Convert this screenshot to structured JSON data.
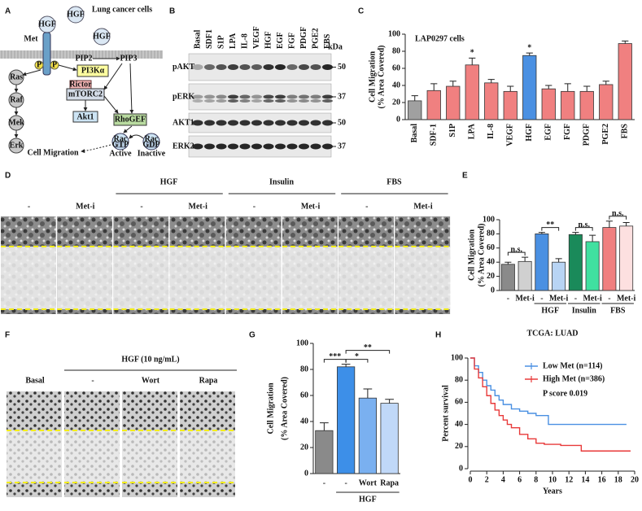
{
  "panel_a": {
    "letter": "A",
    "title": "Lung cancer cells",
    "ligands": [
      "HGF",
      "HGF",
      "HGF"
    ],
    "receptor": "Met",
    "phospho": [
      "P",
      "P"
    ],
    "lipids": [
      "PIP2",
      "PIP3"
    ],
    "pi3k": "PI3Kα",
    "mapk": [
      "Ras",
      "Raf",
      "Mek",
      "Erk"
    ],
    "mtorc2": [
      "Rictor",
      "mTORC2"
    ],
    "akt": "Akt1",
    "rhogef": "RhoGEF",
    "rac": [
      {
        "label": "Rac",
        "state": "GTP",
        "status": "Active"
      },
      {
        "label": "Rac",
        "state": "GDP",
        "status": "Inactive"
      }
    ],
    "outcome": "Cell Migration"
  },
  "panel_b": {
    "letter": "B",
    "lanes": [
      "Basal",
      "SDF1",
      "S1P",
      "LPA",
      "IL-8",
      "VEGF",
      "HGF",
      "EGF",
      "FGF",
      "PDGF",
      "PGE2",
      "FBS"
    ],
    "unit": "kDa",
    "rows": [
      {
        "label": "pAKT",
        "marker": "50"
      },
      {
        "label": "pERK",
        "marker": "37"
      },
      {
        "label": "AKT1",
        "marker": "50"
      },
      {
        "label": "ERK2",
        "marker": "37"
      }
    ]
  },
  "panel_d": {
    "letter": "D",
    "lanes": [
      "-",
      "Met-i",
      "-",
      "Met-i",
      "-",
      "Met-i",
      "-",
      "Met-i"
    ],
    "groups": [
      {
        "label": "HGF",
        "lanes": [
          2,
          3
        ]
      },
      {
        "label": "Insulin",
        "lanes": [
          4,
          5
        ]
      },
      {
        "label": "FBS",
        "lanes": [
          6,
          7
        ]
      }
    ]
  },
  "panel_f": {
    "letter": "F",
    "lanes": [
      "Basal",
      "-",
      "Wort",
      "Rapa"
    ],
    "groups": [
      {
        "label": "HGF (10 ng/mL)",
        "lanes": [
          1,
          2,
          3
        ]
      }
    ]
  },
  "chart_data": [
    {
      "type": "bar",
      "panel": "C",
      "title": "LAP0297 cells",
      "ylabel": [
        "Cell Migration",
        "(% Area Covered)"
      ],
      "categories": [
        "Basal",
        "SDF-1",
        "S1P",
        "LPA",
        "IL-8",
        "VEGF",
        "HGF",
        "EGF",
        "FGF",
        "PDGF",
        "PGE2",
        "FBS"
      ],
      "values": [
        22,
        34,
        39,
        64,
        43,
        33,
        75,
        36,
        33,
        33,
        41,
        89
      ],
      "errors": [
        6,
        8,
        6,
        8,
        4,
        6,
        3,
        4,
        9,
        6,
        4,
        3
      ],
      "colors": [
        "#a0a0a0",
        "#f08080",
        "#f08080",
        "#f08080",
        "#f08080",
        "#f08080",
        "#4a90e2",
        "#f08080",
        "#f08080",
        "#f08080",
        "#f08080",
        "#f08080"
      ],
      "ylim": [
        0,
        100
      ],
      "yticks": [
        0,
        20,
        40,
        60,
        80,
        100
      ],
      "annotations": [
        {
          "text": "*",
          "bar": 3
        },
        {
          "text": "*",
          "bar": 6
        }
      ]
    },
    {
      "type": "bar",
      "panel": "E",
      "ylabel": [
        "Cell Migration",
        "(% Area Covered)"
      ],
      "categories": [
        "-",
        "Met-i",
        "-",
        "Met-i",
        "-",
        "Met-i",
        "-",
        "Met-i"
      ],
      "values": [
        37,
        41,
        80,
        40,
        79,
        69,
        89,
        91
      ],
      "errors": [
        3,
        6,
        2,
        5,
        3,
        9,
        9,
        5
      ],
      "colors": [
        "#8a8a8a",
        "#d0d0d0",
        "#4a90e2",
        "#b8d4f4",
        "#1a8a5a",
        "#40e0a0",
        "#f08080",
        "#fde0e0"
      ],
      "ylim": [
        0,
        100
      ],
      "yticks": [
        0,
        20,
        40,
        60,
        80,
        100
      ],
      "brackets": [
        {
          "text": "n.s.",
          "between": [
            0,
            1
          ]
        },
        {
          "text": "**",
          "between": [
            2,
            3
          ]
        },
        {
          "text": "n.s.",
          "between": [
            4,
            5
          ]
        },
        {
          "text": "n.s.",
          "between": [
            6,
            7
          ]
        }
      ],
      "groups": [
        {
          "label": "HGF",
          "members": [
            2,
            3
          ]
        },
        {
          "label": "Insulin",
          "members": [
            4,
            5
          ]
        },
        {
          "label": "FBS",
          "members": [
            6,
            7
          ]
        }
      ]
    },
    {
      "type": "bar",
      "panel": "G",
      "ylabel": [
        "Cell Migration",
        "(% Area Covered)"
      ],
      "categories": [
        "-",
        "-",
        "Wort",
        "Rapa"
      ],
      "values": [
        33,
        82,
        58,
        54
      ],
      "errors": [
        6,
        2,
        7,
        3
      ],
      "colors": [
        "#8a8a8a",
        "#3d8fe8",
        "#7ab0f0",
        "#c0d8f8"
      ],
      "ylim": [
        0,
        100
      ],
      "yticks": [
        0,
        20,
        40,
        60,
        80,
        100
      ],
      "brackets": [
        {
          "text": "***",
          "between": [
            0,
            1
          ]
        },
        {
          "text": "*",
          "between": [
            1,
            2
          ]
        },
        {
          "text": "**",
          "between": [
            1,
            3
          ]
        }
      ],
      "groups": [
        {
          "label": "HGF",
          "members": [
            1,
            2,
            3
          ]
        }
      ]
    },
    {
      "type": "line",
      "panel": "H",
      "title": "TCGA: LUAD",
      "xlabel": "Years",
      "ylabel": "Percent survival",
      "xlim": [
        0,
        20
      ],
      "ylim": [
        0,
        100
      ],
      "xticks": [
        0,
        2,
        4,
        6,
        8,
        10,
        12,
        14,
        16,
        18,
        20
      ],
      "yticks": [
        0,
        20,
        40,
        60,
        80,
        100
      ],
      "step": true,
      "legend": "upper right",
      "series": [
        {
          "name": "Low Met (n=114)",
          "color": "#4a90e2",
          "x": [
            0,
            0.5,
            1,
            1.5,
            2,
            2.5,
            3,
            3.5,
            4,
            5,
            6,
            7,
            8,
            9.5,
            19
          ],
          "values": [
            100,
            93,
            87,
            80,
            75,
            71,
            66,
            62,
            58,
            54,
            52,
            50,
            48,
            40,
            40
          ]
        },
        {
          "name": "High Met (n=386)",
          "color": "#e83a3a",
          "x": [
            0,
            0.5,
            1,
            1.5,
            2,
            2.5,
            3,
            3.5,
            4,
            4.5,
            5,
            6,
            7,
            8,
            9,
            11,
            13.5,
            19.5
          ],
          "values": [
            100,
            90,
            82,
            74,
            66,
            59,
            53,
            48,
            44,
            40,
            37,
            31,
            27,
            23,
            22,
            21,
            16,
            16
          ]
        }
      ],
      "annotations": [
        "P score 0.019"
      ]
    }
  ]
}
